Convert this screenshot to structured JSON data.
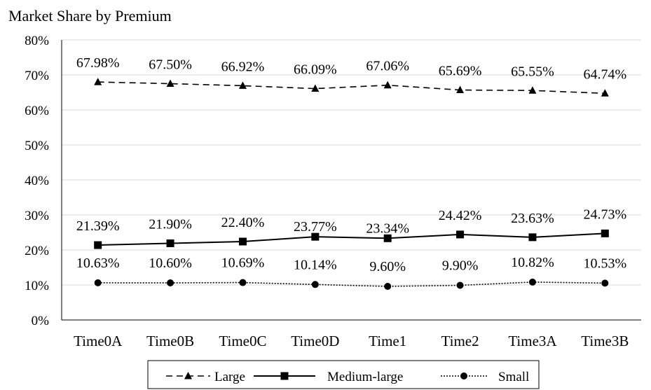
{
  "chart_data": {
    "type": "line",
    "title": "Market Share by Premium",
    "xlabel": "",
    "ylabel": "",
    "ylim": [
      0,
      80
    ],
    "y_ticks": [
      "0%",
      "10%",
      "20%",
      "30%",
      "40%",
      "50%",
      "60%",
      "70%",
      "80%"
    ],
    "grid": true,
    "legend_position": "bottom",
    "categories": [
      "Time0A",
      "Time0B",
      "Time0C",
      "Time0D",
      "Time1",
      "Time2",
      "Time3A",
      "Time3B"
    ],
    "series": [
      {
        "name": "Large",
        "style": "dashed",
        "marker": "triangle",
        "values": [
          67.98,
          67.5,
          66.92,
          66.09,
          67.06,
          65.69,
          65.55,
          64.74
        ],
        "labels": [
          "67.98%",
          "67.50%",
          "66.92%",
          "66.09%",
          "67.06%",
          "65.69%",
          "65.55%",
          "64.74%"
        ]
      },
      {
        "name": "Medium-large",
        "style": "solid",
        "marker": "square",
        "values": [
          21.39,
          21.9,
          22.4,
          23.77,
          23.34,
          24.42,
          23.63,
          24.73
        ],
        "labels": [
          "21.39%",
          "21.90%",
          "22.40%",
          "23.77%",
          "23.34%",
          "24.42%",
          "23.63%",
          "24.73%"
        ]
      },
      {
        "name": "Small",
        "style": "dotted",
        "marker": "circle",
        "values": [
          10.63,
          10.6,
          10.69,
          10.14,
          9.6,
          9.9,
          10.82,
          10.53
        ],
        "labels": [
          "10.63%",
          "10.60%",
          "10.69%",
          "10.14%",
          "9.60%",
          "9.90%",
          "10.82%",
          "10.53%"
        ]
      }
    ]
  }
}
